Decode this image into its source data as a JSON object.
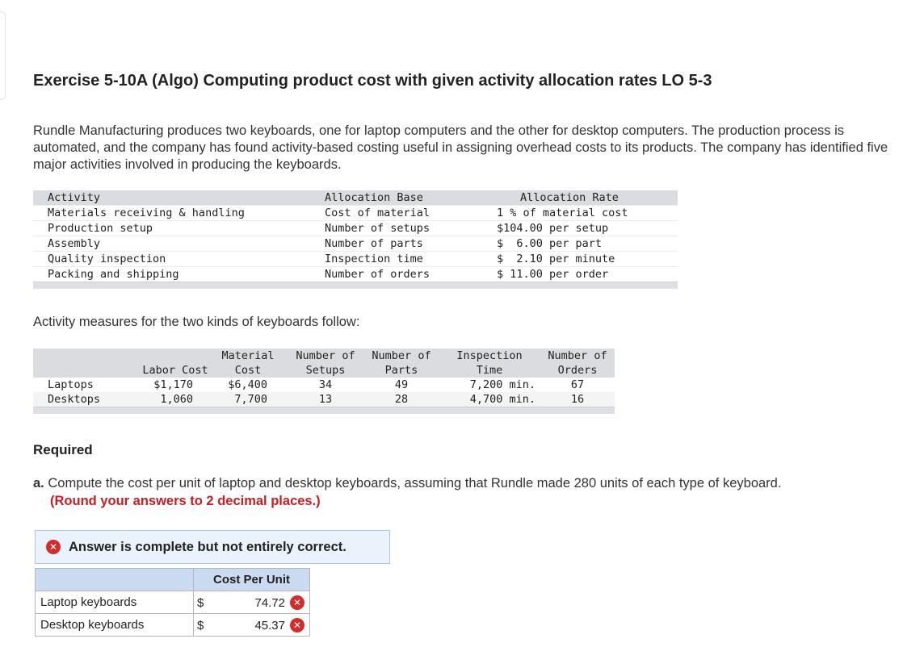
{
  "title": "Exercise 5-10A (Algo) Computing product cost with given activity allocation rates LO 5-3",
  "intro": "Rundle Manufacturing produces two keyboards, one for laptop computers and the other for desktop computers. The production process is automated, and the company has found activity-based costing useful in assigning overhead costs to its products. The company has identified five major activities involved in producing the keyboards.",
  "activity_table": {
    "headers": {
      "activity": "Activity",
      "base": "Allocation Base",
      "rate": "Allocation Rate"
    },
    "rows": [
      {
        "activity": "Materials receiving & handling",
        "base": "Cost of material",
        "rate": "1 % of material cost"
      },
      {
        "activity": "Production setup",
        "base": "Number of setups",
        "rate": "$104.00 per setup"
      },
      {
        "activity": "Assembly",
        "base": "Number of parts",
        "rate": "$  6.00 per part"
      },
      {
        "activity": "Quality inspection",
        "base": "Inspection time",
        "rate": "$  2.10 per minute"
      },
      {
        "activity": "Packing and shipping",
        "base": "Number of orders",
        "rate": "$ 11.00 per order"
      }
    ]
  },
  "measures_label": "Activity measures for the two kinds of keyboards follow:",
  "measures_table": {
    "headers": {
      "labor": "Labor Cost",
      "material_1": "Material",
      "material_2": "Cost",
      "setups_1": "Number of",
      "setups_2": "Setups",
      "parts_1": "Number of",
      "parts_2": "Parts",
      "inspection_1": "Inspection",
      "inspection_2": "Time",
      "orders_1": "Number of",
      "orders_2": "Orders"
    },
    "rows": [
      {
        "name": "Laptops",
        "labor": "$1,170",
        "material": "$6,400",
        "setups": "34",
        "parts": "49",
        "inspection": "7,200 min.",
        "orders": "67"
      },
      {
        "name": "Desktops",
        "labor": "1,060",
        "material": "7,700",
        "setups": "13",
        "parts": "28",
        "inspection": "4,700 min.",
        "orders": "16"
      }
    ]
  },
  "required_heading": "Required",
  "requirement_a": {
    "letter": "a.",
    "text": "Compute the cost per unit of laptop and desktop keyboards, assuming that Rundle made 280 units of each type of keyboard.",
    "note": "(Round your answers to 2 decimal places.)"
  },
  "feedback_banner": "Answer is complete but not entirely correct.",
  "feedback_icon": "x-circle-icon",
  "answer_table": {
    "header": "Cost Per Unit",
    "rows": [
      {
        "label": "Laptop keyboards",
        "currency": "$",
        "value": "74.72",
        "status": "incorrect"
      },
      {
        "label": "Desktop keyboards",
        "currency": "$",
        "value": "45.37",
        "status": "incorrect"
      }
    ]
  },
  "colors": {
    "table_header_bg": "#dbdcdf",
    "answer_header_bg": "#c9daf1",
    "banner_bg": "#eaf2fb",
    "error_red": "#d22c2c",
    "note_red": "#c41e24"
  }
}
